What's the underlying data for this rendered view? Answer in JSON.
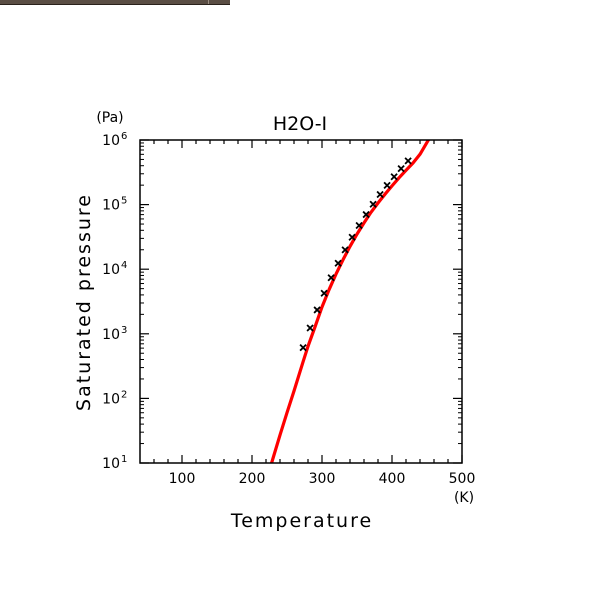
{
  "chart_data": {
    "type": "line",
    "title": "H2O-I",
    "xlabel": "Temperature",
    "ylabel": "Saturated pressure",
    "x_unit": "(K)",
    "y_unit": "(Pa)",
    "xlim": [
      40,
      500
    ],
    "ylim": [
      10,
      1000000
    ],
    "yscale": "log",
    "x_ticks": [
      100,
      200,
      300,
      400,
      500
    ],
    "y_ticks": [
      {
        "base": "10",
        "exp": "1"
      },
      {
        "base": "10",
        "exp": "2"
      },
      {
        "base": "10",
        "exp": "3"
      },
      {
        "base": "10",
        "exp": "4"
      },
      {
        "base": "10",
        "exp": "5"
      },
      {
        "base": "10",
        "exp": "6"
      }
    ],
    "series": [
      {
        "kind": "curve",
        "color": "#ff0000",
        "x": [
          228,
          240,
          250,
          260,
          273,
          280,
          290,
          300,
          310,
          320,
          330,
          340,
          350,
          360,
          370,
          380,
          390,
          400,
          410,
          420,
          430,
          440,
          452
        ],
        "y": [
          10,
          27,
          60,
          130,
          370,
          640,
          1280,
          2600,
          4800,
          8400,
          14000,
          22500,
          35000,
          52000,
          76000,
          106000,
          145000,
          195000,
          260000,
          340000,
          440000,
          600000,
          1000000
        ]
      },
      {
        "kind": "markers",
        "marker": "x",
        "color": "#000000",
        "x": [
          273,
          283,
          293,
          303,
          313,
          323,
          333,
          343,
          353,
          363,
          373,
          383,
          393,
          403,
          413,
          423
        ],
        "y": [
          611,
          1230,
          2340,
          4250,
          7380,
          12350,
          19920,
          31200,
          47400,
          70100,
          101300,
          143300,
          198500,
          270000,
          361000,
          476000
        ]
      }
    ]
  }
}
